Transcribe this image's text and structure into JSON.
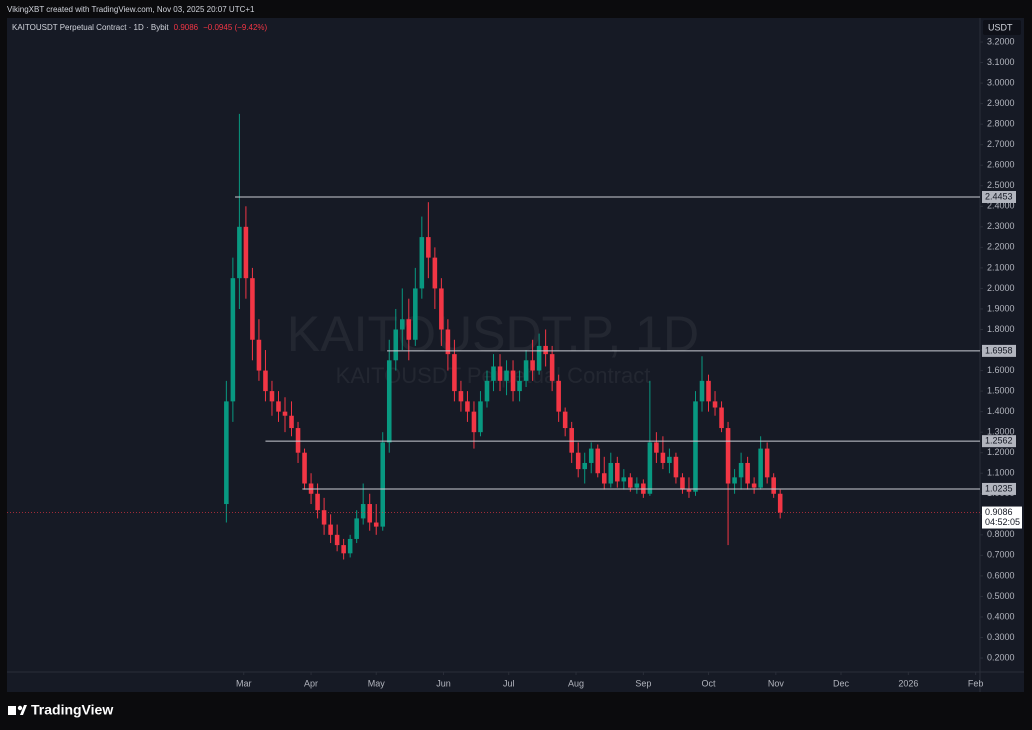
{
  "header": {
    "credit": "VikingXBT created with TradingView.com, Nov 03, 2025 20:07 UTC+1"
  },
  "chart_data": {
    "type": "candlestick",
    "title": "KAITOUSDT Perpetual Contract · 1D · Bybit",
    "last_price": 0.9086,
    "change": {
      "value": -0.0945,
      "label": "−0.0945 (−9.42%)"
    },
    "currency": "USDT",
    "countdown": "04:52:05",
    "watermark": "KAITOUSDT.P, 1D",
    "watermark_subtitle": "KAITOUSDT Perpetual Contract",
    "up_color": "#089981",
    "down_color": "#f23645",
    "x": [
      51,
      54,
      57,
      60,
      63,
      66,
      69,
      72,
      75,
      78,
      81,
      84,
      87,
      90,
      93,
      96,
      99,
      102,
      105,
      108,
      111,
      114,
      117,
      120,
      123,
      126,
      129,
      132,
      135,
      138,
      141,
      144,
      147,
      150,
      153,
      156,
      159,
      162,
      165,
      168,
      171,
      174,
      177,
      180,
      183,
      186,
      189,
      192,
      195,
      198,
      201,
      204,
      207,
      210,
      213,
      216,
      219,
      222,
      225,
      228,
      231,
      234,
      237,
      240,
      243,
      246,
      249,
      252,
      255,
      258,
      261,
      264,
      267,
      270,
      273,
      276,
      279,
      282,
      285,
      288,
      291,
      294,
      297,
      300,
      303,
      306
    ],
    "open": [
      0.95,
      1.45,
      2.05,
      2.3,
      2.05,
      1.75,
      1.6,
      1.5,
      1.45,
      1.4,
      1.38,
      1.32,
      1.2,
      1.05,
      1.0,
      0.92,
      0.85,
      0.8,
      0.75,
      0.71,
      0.78,
      0.88,
      0.95,
      0.86,
      0.84,
      1.25,
      1.65,
      1.8,
      1.85,
      1.75,
      2.0,
      2.25,
      2.15,
      2.0,
      1.8,
      1.68,
      1.5,
      1.45,
      1.4,
      1.3,
      1.45,
      1.55,
      1.62,
      1.55,
      1.6,
      1.5,
      1.55,
      1.65,
      1.6,
      1.72,
      1.68,
      1.55,
      1.4,
      1.32,
      1.2,
      1.12,
      1.15,
      1.22,
      1.1,
      1.05,
      1.15,
      1.06,
      1.08,
      1.03,
      1.05,
      1.0,
      1.25,
      1.2,
      1.15,
      1.18,
      1.08,
      1.02,
      1.01,
      1.45,
      1.55,
      1.45,
      1.42,
      1.32,
      1.05,
      1.08,
      1.15,
      1.05,
      1.03,
      1.22,
      1.08,
      1.0
    ],
    "high": [
      1.55,
      2.15,
      2.85,
      2.4,
      2.1,
      1.85,
      1.7,
      1.55,
      1.5,
      1.47,
      1.45,
      1.35,
      1.22,
      1.1,
      1.05,
      0.98,
      0.9,
      0.85,
      0.78,
      0.8,
      0.92,
      1.05,
      1.0,
      0.95,
      1.3,
      1.75,
      1.9,
      2.0,
      1.95,
      2.1,
      2.35,
      2.42,
      2.2,
      2.05,
      1.85,
      1.75,
      1.55,
      1.5,
      1.45,
      1.5,
      1.6,
      1.68,
      1.68,
      1.65,
      1.65,
      1.6,
      1.7,
      1.75,
      1.78,
      1.8,
      1.72,
      1.58,
      1.42,
      1.35,
      1.25,
      1.2,
      1.25,
      1.24,
      1.18,
      1.2,
      1.18,
      1.12,
      1.1,
      1.08,
      1.07,
      1.55,
      1.3,
      1.28,
      1.22,
      1.2,
      1.1,
      1.08,
      1.5,
      1.67,
      1.58,
      1.5,
      1.45,
      1.35,
      1.12,
      1.2,
      1.18,
      1.08,
      1.28,
      1.25,
      1.1,
      1.02
    ],
    "low": [
      0.86,
      1.35,
      1.9,
      1.95,
      1.65,
      1.55,
      1.45,
      1.38,
      1.35,
      1.3,
      1.28,
      1.15,
      1.02,
      0.95,
      0.88,
      0.8,
      0.76,
      0.72,
      0.68,
      0.69,
      0.76,
      0.85,
      0.82,
      0.8,
      0.82,
      1.2,
      1.6,
      1.7,
      1.65,
      1.72,
      1.95,
      2.05,
      1.9,
      1.72,
      1.6,
      1.45,
      1.4,
      1.35,
      1.22,
      1.28,
      1.42,
      1.5,
      1.5,
      1.48,
      1.45,
      1.45,
      1.52,
      1.55,
      1.58,
      1.62,
      1.5,
      1.35,
      1.28,
      1.15,
      1.08,
      1.05,
      1.1,
      1.08,
      1.02,
      1.03,
      1.03,
      1.02,
      1.01,
      1.0,
      0.98,
      0.99,
      1.15,
      1.12,
      1.1,
      1.05,
      1.0,
      0.98,
      0.99,
      1.4,
      1.4,
      1.38,
      1.3,
      0.75,
      1.0,
      1.02,
      1.02,
      1.0,
      1.02,
      1.05,
      0.98,
      0.88
    ],
    "close": [
      1.45,
      2.05,
      2.3,
      2.05,
      1.75,
      1.6,
      1.5,
      1.45,
      1.4,
      1.38,
      1.32,
      1.2,
      1.05,
      1.0,
      0.92,
      0.85,
      0.8,
      0.75,
      0.71,
      0.78,
      0.88,
      0.95,
      0.86,
      0.84,
      1.25,
      1.65,
      1.8,
      1.85,
      1.75,
      2.0,
      2.25,
      2.15,
      2.0,
      1.8,
      1.68,
      1.5,
      1.45,
      1.4,
      1.3,
      1.45,
      1.55,
      1.62,
      1.55,
      1.6,
      1.5,
      1.55,
      1.65,
      1.6,
      1.72,
      1.68,
      1.55,
      1.4,
      1.32,
      1.2,
      1.12,
      1.15,
      1.22,
      1.1,
      1.05,
      1.15,
      1.06,
      1.08,
      1.03,
      1.05,
      1.0,
      1.25,
      1.2,
      1.15,
      1.18,
      1.08,
      1.02,
      1.01,
      1.45,
      1.55,
      1.45,
      1.42,
      1.32,
      1.05,
      1.08,
      1.15,
      1.05,
      1.03,
      1.22,
      1.08,
      1.0,
      0.9086
    ],
    "xlim": [
      -50,
      398
    ],
    "xticks": [
      {
        "value": 59,
        "label": "Mar"
      },
      {
        "value": 90,
        "label": "Apr"
      },
      {
        "value": 120,
        "label": "May"
      },
      {
        "value": 151,
        "label": "Jun"
      },
      {
        "value": 181,
        "label": "Jul"
      },
      {
        "value": 212,
        "label": "Aug"
      },
      {
        "value": 243,
        "label": "Sep"
      },
      {
        "value": 273,
        "label": "Oct"
      },
      {
        "value": 304,
        "label": "Nov"
      },
      {
        "value": 334,
        "label": "Dec"
      },
      {
        "value": 365,
        "label": "2026"
      },
      {
        "value": 396,
        "label": "Feb"
      }
    ],
    "ylim": [
      0.132,
      3.317
    ],
    "yticks": [
      {
        "value": 0.2,
        "label": "0.2000"
      },
      {
        "value": 0.3,
        "label": "0.3000"
      },
      {
        "value": 0.4,
        "label": "0.4000"
      },
      {
        "value": 0.5,
        "label": "0.5000"
      },
      {
        "value": 0.6,
        "label": "0.6000"
      },
      {
        "value": 0.7,
        "label": "0.7000"
      },
      {
        "value": 0.8,
        "label": "0.8000"
      },
      {
        "value": 0.9,
        "label": "0.9000"
      },
      {
        "value": 1,
        "label": "1.0000"
      },
      {
        "value": 1.1,
        "label": "1.1000"
      },
      {
        "value": 1.2,
        "label": "1.2000"
      },
      {
        "value": 1.3,
        "label": "1.3000"
      },
      {
        "value": 1.4,
        "label": "1.4000"
      },
      {
        "value": 1.5,
        "label": "1.5000"
      },
      {
        "value": 1.6,
        "label": "1.6000"
      },
      {
        "value": 1.7,
        "label": "1.7000"
      },
      {
        "value": 1.8,
        "label": "1.8000"
      },
      {
        "value": 1.9,
        "label": "1.9000"
      },
      {
        "value": 2,
        "label": "2.0000"
      },
      {
        "value": 2.1,
        "label": "2.1000"
      },
      {
        "value": 2.2,
        "label": "2.2000"
      },
      {
        "value": 2.3,
        "label": "2.3000"
      },
      {
        "value": 2.4,
        "label": "2.4000"
      },
      {
        "value": 2.5,
        "label": "2.5000"
      },
      {
        "value": 2.6,
        "label": "2.6000"
      },
      {
        "value": 2.7,
        "label": "2.7000"
      },
      {
        "value": 2.8,
        "label": "2.8000"
      },
      {
        "value": 2.9,
        "label": "2.9000"
      },
      {
        "value": 3,
        "label": "3.0000"
      },
      {
        "value": 3.1,
        "label": "3.1000"
      },
      {
        "value": 3.2,
        "label": "3.2000"
      }
    ],
    "levels": [
      {
        "value": 2.4453,
        "start": 55
      },
      {
        "value": 1.6958,
        "start": 125
      },
      {
        "value": 1.2562,
        "start": 69
      },
      {
        "value": 1.0235,
        "start": 86
      }
    ]
  },
  "footer": {
    "logo": "TradingView"
  }
}
